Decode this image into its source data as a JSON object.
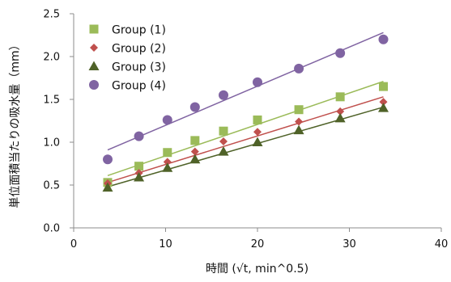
{
  "chart_data": {
    "type": "scatter",
    "xlabel": "時間 (√t, min^0.5)",
    "ylabel": "単位面積当たりの吸水量（mm）",
    "xlim": [
      0,
      40
    ],
    "ylim": [
      0,
      2.5
    ],
    "xticks": [
      "0",
      "10",
      "20",
      "30",
      "40"
    ],
    "yticks": [
      "0.0",
      "0.5",
      "1.0",
      "1.5",
      "2.0",
      "2.5"
    ],
    "grid": false,
    "legend_position": "top-left",
    "x": [
      3.7,
      7.1,
      10.2,
      13.2,
      16.3,
      20.0,
      24.5,
      29.0,
      33.7
    ],
    "series": [
      {
        "name": "Group (1)",
        "marker": "square",
        "color": "#9bbb59",
        "values": [
          0.53,
          0.72,
          0.88,
          1.02,
          1.13,
          1.26,
          1.38,
          1.53,
          1.65
        ],
        "trendline": [
          0.61,
          1.71
        ]
      },
      {
        "name": "Group (2)",
        "marker": "diamond",
        "color": "#c0504d",
        "values": [
          0.52,
          0.64,
          0.77,
          0.89,
          1.01,
          1.12,
          1.24,
          1.36,
          1.47
        ],
        "trendline": [
          0.53,
          1.53
        ]
      },
      {
        "name": "Group (3)",
        "marker": "triangle",
        "color": "#4f6228",
        "values": [
          0.47,
          0.59,
          0.7,
          0.8,
          0.89,
          1.0,
          1.14,
          1.28,
          1.4
        ],
        "trendline": [
          0.48,
          1.41
        ]
      },
      {
        "name": "Group (4)",
        "marker": "circle",
        "color": "#8064a2",
        "values": [
          0.8,
          1.07,
          1.26,
          1.41,
          1.55,
          1.7,
          1.86,
          2.04,
          2.2
        ],
        "trendline": [
          0.91,
          2.28
        ]
      }
    ]
  }
}
